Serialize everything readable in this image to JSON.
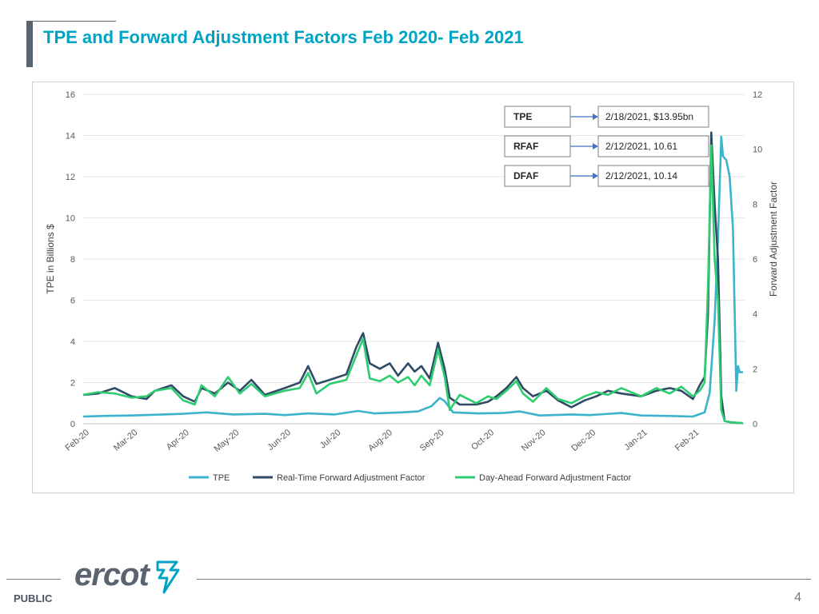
{
  "title": "TPE and Forward Adjustment Factors Feb 2020- Feb 2021",
  "footer": {
    "classification": "PUBLIC",
    "page_number": "4",
    "logo_text": "ercot"
  },
  "colors": {
    "title": "#00a3c4",
    "tpe": "#3bb3cc",
    "rfaf": "#2f4b66",
    "dfaf": "#2ecc71"
  },
  "chart_data": {
    "type": "line",
    "title": "",
    "ylabel": "TPE in Billions $",
    "y2label": "Forward Adjustment Factor",
    "ylim": [
      0,
      16
    ],
    "y2lim": [
      0,
      12
    ],
    "yticks": [
      0,
      2,
      4,
      6,
      8,
      10,
      12,
      14,
      16
    ],
    "y2ticks": [
      0,
      2,
      4,
      6,
      8,
      10,
      12
    ],
    "grid": true,
    "legend_position": "bottom",
    "xtick_labels": [
      "Feb-20",
      "Mar-20",
      "Apr-20",
      "May-20",
      "Jun-20",
      "Jul-20",
      "Aug-20",
      "Sep-20",
      "Oct-20",
      "Nov-20",
      "Dec-20",
      "Jan-21",
      "Feb-21"
    ],
    "series": [
      {
        "name": "TPE",
        "axis": "left",
        "color": "#3bb3cc",
        "points": [
          [
            "2020-02-01",
            0.35
          ],
          [
            "2020-02-15",
            0.38
          ],
          [
            "2020-03-01",
            0.4
          ],
          [
            "2020-03-20",
            0.45
          ],
          [
            "2020-04-01",
            0.48
          ],
          [
            "2020-04-15",
            0.55
          ],
          [
            "2020-05-01",
            0.45
          ],
          [
            "2020-05-20",
            0.48
          ],
          [
            "2020-06-01",
            0.42
          ],
          [
            "2020-06-15",
            0.5
          ],
          [
            "2020-07-01",
            0.45
          ],
          [
            "2020-07-15",
            0.62
          ],
          [
            "2020-07-25",
            0.5
          ],
          [
            "2020-08-10",
            0.55
          ],
          [
            "2020-08-20",
            0.6
          ],
          [
            "2020-08-28",
            0.85
          ],
          [
            "2020-09-02",
            1.25
          ],
          [
            "2020-09-05",
            1.1
          ],
          [
            "2020-09-10",
            0.55
          ],
          [
            "2020-09-25",
            0.5
          ],
          [
            "2020-10-10",
            0.52
          ],
          [
            "2020-10-20",
            0.6
          ],
          [
            "2020-11-01",
            0.4
          ],
          [
            "2020-11-20",
            0.45
          ],
          [
            "2020-12-01",
            0.42
          ],
          [
            "2020-12-20",
            0.52
          ],
          [
            "2021-01-01",
            0.4
          ],
          [
            "2021-01-15",
            0.38
          ],
          [
            "2021-02-01",
            0.35
          ],
          [
            "2021-02-08",
            0.55
          ],
          [
            "2021-02-11",
            1.5
          ],
          [
            "2021-02-14",
            5.0
          ],
          [
            "2021-02-16",
            9.0
          ],
          [
            "2021-02-18",
            13.95
          ],
          [
            "2021-02-19",
            13.0
          ],
          [
            "2021-02-21",
            12.8
          ],
          [
            "2021-02-23",
            12.0
          ],
          [
            "2021-02-25",
            9.5
          ],
          [
            "2021-02-27",
            1.6
          ],
          [
            "2021-02-28",
            2.8
          ],
          [
            "2021-03-01",
            2.5
          ],
          [
            "2021-03-03",
            2.5
          ]
        ]
      },
      {
        "name": "Real-Time Forward Adjustment Factor",
        "axis": "right",
        "color": "#2f4b66",
        "points": [
          [
            "2020-02-01",
            1.05
          ],
          [
            "2020-02-10",
            1.1
          ],
          [
            "2020-02-20",
            1.3
          ],
          [
            "2020-03-01",
            1.0
          ],
          [
            "2020-03-10",
            0.9
          ],
          [
            "2020-03-15",
            1.2
          ],
          [
            "2020-03-25",
            1.4
          ],
          [
            "2020-04-01",
            1.0
          ],
          [
            "2020-04-08",
            0.8
          ],
          [
            "2020-04-12",
            1.3
          ],
          [
            "2020-04-20",
            1.1
          ],
          [
            "2020-04-28",
            1.5
          ],
          [
            "2020-05-05",
            1.2
          ],
          [
            "2020-05-12",
            1.6
          ],
          [
            "2020-05-20",
            1.05
          ],
          [
            "2020-06-01",
            1.3
          ],
          [
            "2020-06-10",
            1.5
          ],
          [
            "2020-06-15",
            2.1
          ],
          [
            "2020-06-20",
            1.45
          ],
          [
            "2020-06-28",
            1.6
          ],
          [
            "2020-07-08",
            1.8
          ],
          [
            "2020-07-14",
            2.8
          ],
          [
            "2020-07-18",
            3.3
          ],
          [
            "2020-07-22",
            2.2
          ],
          [
            "2020-07-28",
            2.0
          ],
          [
            "2020-08-03",
            2.2
          ],
          [
            "2020-08-08",
            1.75
          ],
          [
            "2020-08-14",
            2.2
          ],
          [
            "2020-08-18",
            1.9
          ],
          [
            "2020-08-22",
            2.1
          ],
          [
            "2020-08-27",
            1.65
          ],
          [
            "2020-09-01",
            2.95
          ],
          [
            "2020-09-05",
            2.0
          ],
          [
            "2020-09-08",
            0.95
          ],
          [
            "2020-09-14",
            0.7
          ],
          [
            "2020-09-24",
            0.7
          ],
          [
            "2020-10-01",
            0.8
          ],
          [
            "2020-10-06",
            1.0
          ],
          [
            "2020-10-12",
            1.3
          ],
          [
            "2020-10-18",
            1.7
          ],
          [
            "2020-10-22",
            1.3
          ],
          [
            "2020-10-28",
            1.0
          ],
          [
            "2020-11-05",
            1.2
          ],
          [
            "2020-11-12",
            0.85
          ],
          [
            "2020-11-20",
            0.6
          ],
          [
            "2020-11-28",
            0.85
          ],
          [
            "2020-12-05",
            1.0
          ],
          [
            "2020-12-12",
            1.2
          ],
          [
            "2020-12-20",
            1.1
          ],
          [
            "2021-01-01",
            1.0
          ],
          [
            "2021-01-10",
            1.2
          ],
          [
            "2021-01-18",
            1.3
          ],
          [
            "2021-01-25",
            1.2
          ],
          [
            "2021-02-01",
            0.9
          ],
          [
            "2021-02-05",
            1.4
          ],
          [
            "2021-02-08",
            1.7
          ],
          [
            "2021-02-10",
            4.0
          ],
          [
            "2021-02-12",
            10.61
          ],
          [
            "2021-02-14",
            8.0
          ],
          [
            "2021-02-16",
            6.0
          ],
          [
            "2021-02-18",
            1.0
          ],
          [
            "2021-02-20",
            0.1
          ],
          [
            "2021-02-24",
            0.05
          ],
          [
            "2021-03-03",
            0.02
          ]
        ]
      },
      {
        "name": "Day-Ahead Forward Adjustment Factor",
        "axis": "right",
        "color": "#2ecc71",
        "points": [
          [
            "2020-02-01",
            1.05
          ],
          [
            "2020-02-10",
            1.15
          ],
          [
            "2020-02-20",
            1.1
          ],
          [
            "2020-03-01",
            0.95
          ],
          [
            "2020-03-10",
            1.0
          ],
          [
            "2020-03-15",
            1.2
          ],
          [
            "2020-03-25",
            1.3
          ],
          [
            "2020-04-01",
            0.85
          ],
          [
            "2020-04-08",
            0.7
          ],
          [
            "2020-04-12",
            1.4
          ],
          [
            "2020-04-20",
            1.0
          ],
          [
            "2020-04-28",
            1.7
          ],
          [
            "2020-05-05",
            1.1
          ],
          [
            "2020-05-12",
            1.45
          ],
          [
            "2020-05-20",
            1.0
          ],
          [
            "2020-06-01",
            1.2
          ],
          [
            "2020-06-10",
            1.3
          ],
          [
            "2020-06-15",
            1.85
          ],
          [
            "2020-06-20",
            1.1
          ],
          [
            "2020-06-28",
            1.45
          ],
          [
            "2020-07-08",
            1.6
          ],
          [
            "2020-07-14",
            2.5
          ],
          [
            "2020-07-18",
            3.1
          ],
          [
            "2020-07-22",
            1.65
          ],
          [
            "2020-07-28",
            1.55
          ],
          [
            "2020-08-03",
            1.75
          ],
          [
            "2020-08-08",
            1.5
          ],
          [
            "2020-08-14",
            1.7
          ],
          [
            "2020-08-18",
            1.4
          ],
          [
            "2020-08-22",
            1.75
          ],
          [
            "2020-08-27",
            1.4
          ],
          [
            "2020-09-01",
            2.7
          ],
          [
            "2020-09-05",
            1.7
          ],
          [
            "2020-09-08",
            0.5
          ],
          [
            "2020-09-14",
            1.05
          ],
          [
            "2020-09-24",
            0.75
          ],
          [
            "2020-10-01",
            1.0
          ],
          [
            "2020-10-06",
            0.9
          ],
          [
            "2020-10-12",
            1.2
          ],
          [
            "2020-10-18",
            1.55
          ],
          [
            "2020-10-22",
            1.1
          ],
          [
            "2020-10-28",
            0.8
          ],
          [
            "2020-11-05",
            1.3
          ],
          [
            "2020-11-12",
            0.9
          ],
          [
            "2020-11-20",
            0.75
          ],
          [
            "2020-11-28",
            1.0
          ],
          [
            "2020-12-05",
            1.15
          ],
          [
            "2020-12-12",
            1.05
          ],
          [
            "2020-12-20",
            1.3
          ],
          [
            "2021-01-01",
            1.0
          ],
          [
            "2021-01-10",
            1.3
          ],
          [
            "2021-01-18",
            1.1
          ],
          [
            "2021-01-25",
            1.35
          ],
          [
            "2021-02-01",
            1.0
          ],
          [
            "2021-02-05",
            1.2
          ],
          [
            "2021-02-08",
            1.5
          ],
          [
            "2021-02-10",
            5.0
          ],
          [
            "2021-02-12",
            10.14
          ],
          [
            "2021-02-14",
            6.0
          ],
          [
            "2021-02-16",
            4.5
          ],
          [
            "2021-02-18",
            0.5
          ],
          [
            "2021-02-20",
            0.1
          ],
          [
            "2021-02-24",
            0.05
          ],
          [
            "2021-03-03",
            0.02
          ]
        ]
      }
    ],
    "annotations": [
      {
        "label": "TPE",
        "value": "2/18/2021, $13.95bn"
      },
      {
        "label": "RFAF",
        "value": "2/12/2021, 10.61"
      },
      {
        "label": "DFAF",
        "value": "2/12/2021, 10.14"
      }
    ]
  }
}
